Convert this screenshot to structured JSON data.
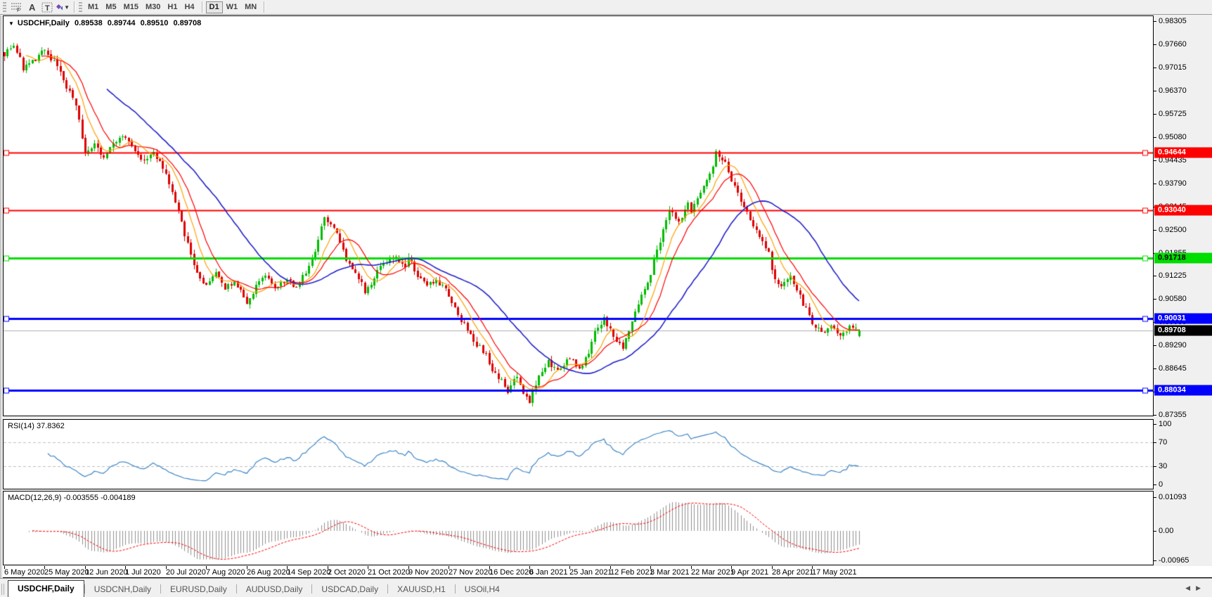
{
  "toolbar": {
    "icons": [
      {
        "name": "fibonacci-icon",
        "glyph": "F"
      },
      {
        "name": "text-icon",
        "glyph": "A"
      },
      {
        "name": "text-label-icon",
        "glyph": "T"
      },
      {
        "name": "arrows-icon",
        "glyph": "❖"
      }
    ],
    "timeframes": [
      "M1",
      "M5",
      "M15",
      "M30",
      "H1",
      "H4",
      "D1",
      "W1",
      "MN"
    ],
    "active_timeframe": "D1"
  },
  "chart": {
    "symbol_label": "USDCHF,Daily",
    "ohlc": {
      "open": "0.89538",
      "high": "0.89744",
      "low": "0.89510",
      "close": "0.89708"
    }
  },
  "indicators": {
    "rsi": {
      "label": "RSI(14) 37.8362",
      "period": 14,
      "value": "37.8362",
      "tick_labels": [
        "100",
        "70",
        "30",
        "0"
      ],
      "tick_values": [
        100,
        70,
        30,
        0
      ],
      "levels": [
        70,
        30
      ]
    },
    "macd": {
      "label": "MACD(12,26,9) -0.003555 -0.004189",
      "fast": 12,
      "slow": 26,
      "signal": 9,
      "value": "-0.003555",
      "signal_value": "-0.004189",
      "tick_labels": [
        "0.01093",
        "0.00",
        "-0.00965"
      ],
      "tick_values": [
        0.01093,
        0.0,
        -0.00965
      ]
    }
  },
  "price_axis": {
    "max": 0.98305,
    "min": 0.87355,
    "tick_labels": [
      "0.98305",
      "0.97660",
      "0.97015",
      "0.96370",
      "0.95725",
      "0.95080",
      "0.94435",
      "0.93790",
      "0.93145",
      "0.92500",
      "0.91855",
      "0.91225",
      "0.90580",
      "0.89935",
      "0.89290",
      "0.88645",
      "0.88000",
      "0.87355"
    ]
  },
  "levels": [
    {
      "label": "0.94644",
      "value": 0.94644,
      "color_key": "red"
    },
    {
      "label": "0.93040",
      "value": 0.9304,
      "color_key": "red"
    },
    {
      "label": "0.91718",
      "value": 0.91718,
      "color_key": "green"
    },
    {
      "label": "0.90031",
      "value": 0.90031,
      "color_key": "blue"
    },
    {
      "label": "0.88034",
      "value": 0.88034,
      "color_key": "blue"
    }
  ],
  "current_price": {
    "label": "0.89708",
    "value": 0.89708
  },
  "date_axis": {
    "labels": [
      "6 May 2020",
      "25 May 2020",
      "12 Jun 2020",
      "1 Jul 2020",
      "20 Jul 2020",
      "7 Aug 2020",
      "26 Aug 2020",
      "14 Sep 2020",
      "2 Oct 2020",
      "21 Oct 2020",
      "9 Nov 2020",
      "27 Nov 2020",
      "16 Dec 2020",
      "6 Jan 2021",
      "25 Jan 2021",
      "12 Feb 2021",
      "3 Mar 2021",
      "22 Mar 2021",
      "9 Apr 2021",
      "28 Apr 2021",
      "17 May 2021"
    ],
    "candles_per_label": 13
  },
  "tabs": {
    "items": [
      {
        "label": "USDCHF,Daily",
        "active": true
      },
      {
        "label": "USDCNH,Daily",
        "active": false
      },
      {
        "label": "EURUSD,Daily",
        "active": false
      },
      {
        "label": "AUDUSD,Daily",
        "active": false
      },
      {
        "label": "USDCAD,Daily",
        "active": false
      },
      {
        "label": "XAUUSD,H1",
        "active": false
      },
      {
        "label": "USOil,H4",
        "active": false
      }
    ]
  },
  "colors": {
    "candle_up": "#00bb00",
    "candle_down": "#dd0000",
    "ma_fast": "#ffa000",
    "ma_mid": "#ff0000",
    "ma_slow": "#2222cc",
    "red": "#ff0000",
    "green": "#00dd00",
    "blue": "#0000ff",
    "level_text_red": "#ffffff",
    "level_text_green": "#000000",
    "level_text_blue": "#ffffff",
    "current_line": "#b0b0b0",
    "current_bg": "#000000",
    "current_text": "#ffffff",
    "rsi_line": "#3e86c8",
    "rsi_level_dash": "#c0c0c0",
    "macd_hist": "#909090",
    "macd_signal": "#ff0000"
  },
  "chart_data": {
    "type": "candlestick",
    "symbol": "USDCHF",
    "timeframe": "Daily",
    "bars": 276,
    "last_bar_ohlc": {
      "open": 0.89538,
      "high": 0.89744,
      "low": 0.8951,
      "close": 0.89708
    },
    "price_path_anchors": [
      [
        0,
        0.974
      ],
      [
        3,
        0.9768
      ],
      [
        6,
        0.97
      ],
      [
        10,
        0.9722
      ],
      [
        13,
        0.9752
      ],
      [
        17,
        0.9705
      ],
      [
        20,
        0.9645
      ],
      [
        23,
        0.96
      ],
      [
        26,
        0.9455
      ],
      [
        29,
        0.9485
      ],
      [
        32,
        0.9445
      ],
      [
        35,
        0.9498
      ],
      [
        39,
        0.9508
      ],
      [
        42,
        0.9462
      ],
      [
        45,
        0.9438
      ],
      [
        48,
        0.9468
      ],
      [
        52,
        0.9398
      ],
      [
        55,
        0.933
      ],
      [
        58,
        0.9235
      ],
      [
        61,
        0.9155
      ],
      [
        64,
        0.9105
      ],
      [
        65,
        0.9098
      ],
      [
        68,
        0.9132
      ],
      [
        71,
        0.9082
      ],
      [
        74,
        0.9112
      ],
      [
        78,
        0.9042
      ],
      [
        81,
        0.9092
      ],
      [
        84,
        0.9126
      ],
      [
        87,
        0.9082
      ],
      [
        91,
        0.9112
      ],
      [
        94,
        0.9088
      ],
      [
        97,
        0.9132
      ],
      [
        100,
        0.9185
      ],
      [
        103,
        0.9288
      ],
      [
        105,
        0.927
      ],
      [
        107,
        0.9235
      ],
      [
        110,
        0.9165
      ],
      [
        113,
        0.9132
      ],
      [
        116,
        0.9082
      ],
      [
        117,
        0.9092
      ],
      [
        120,
        0.9132
      ],
      [
        123,
        0.9162
      ],
      [
        126,
        0.9178
      ],
      [
        129,
        0.9142
      ],
      [
        130,
        0.9172
      ],
      [
        133,
        0.9122
      ],
      [
        136,
        0.9092
      ],
      [
        139,
        0.9112
      ],
      [
        142,
        0.9082
      ],
      [
        143,
        0.9062
      ],
      [
        146,
        0.9012
      ],
      [
        149,
        0.8972
      ],
      [
        152,
        0.8932
      ],
      [
        155,
        0.8902
      ],
      [
        156,
        0.8872
      ],
      [
        159,
        0.8842
      ],
      [
        162,
        0.8802
      ],
      [
        165,
        0.8842
      ],
      [
        167,
        0.8802
      ],
      [
        169,
        0.8772
      ],
      [
        172,
        0.8852
      ],
      [
        175,
        0.8882
      ],
      [
        178,
        0.8862
      ],
      [
        182,
        0.8892
      ],
      [
        185,
        0.8867
      ],
      [
        188,
        0.8907
      ],
      [
        190,
        0.8962
      ],
      [
        193,
        0.9002
      ],
      [
        196,
        0.8952
      ],
      [
        199,
        0.8922
      ],
      [
        202,
        0.8992
      ],
      [
        205,
        0.9062
      ],
      [
        208,
        0.9132
      ],
      [
        211,
        0.9222
      ],
      [
        214,
        0.9302
      ],
      [
        217,
        0.9272
      ],
      [
        220,
        0.9322
      ],
      [
        221,
        0.9292
      ],
      [
        224,
        0.9362
      ],
      [
        227,
        0.9402
      ],
      [
        229,
        0.9462
      ],
      [
        232,
        0.9432
      ],
      [
        234,
        0.9392
      ],
      [
        237,
        0.9332
      ],
      [
        240,
        0.9282
      ],
      [
        243,
        0.9232
      ],
      [
        246,
        0.9182
      ],
      [
        247,
        0.9132
      ],
      [
        250,
        0.9092
      ],
      [
        253,
        0.9122
      ],
      [
        256,
        0.9062
      ],
      [
        259,
        0.9012
      ],
      [
        260,
        0.8992
      ],
      [
        263,
        0.8962
      ],
      [
        266,
        0.8988
      ],
      [
        269,
        0.8952
      ],
      [
        272,
        0.8978
      ],
      [
        275,
        0.89708
      ]
    ],
    "moving_averages": [
      {
        "period": 8,
        "color_key": "ma_fast"
      },
      {
        "period": 13,
        "color_key": "ma_mid"
      },
      {
        "period": 34,
        "color_key": "ma_slow"
      }
    ],
    "horizontal_levels": [
      0.94644,
      0.9304,
      0.91718,
      0.90031,
      0.88034
    ],
    "rsi": {
      "period": 14,
      "current": 37.8362,
      "range": [
        0,
        100
      ],
      "overbought": 70,
      "oversold": 30
    },
    "macd": {
      "fast": 12,
      "slow": 26,
      "signal": 9,
      "current": -0.003555,
      "current_signal": -0.004189,
      "axis_max": 0.01093,
      "axis_min": -0.00965
    }
  }
}
